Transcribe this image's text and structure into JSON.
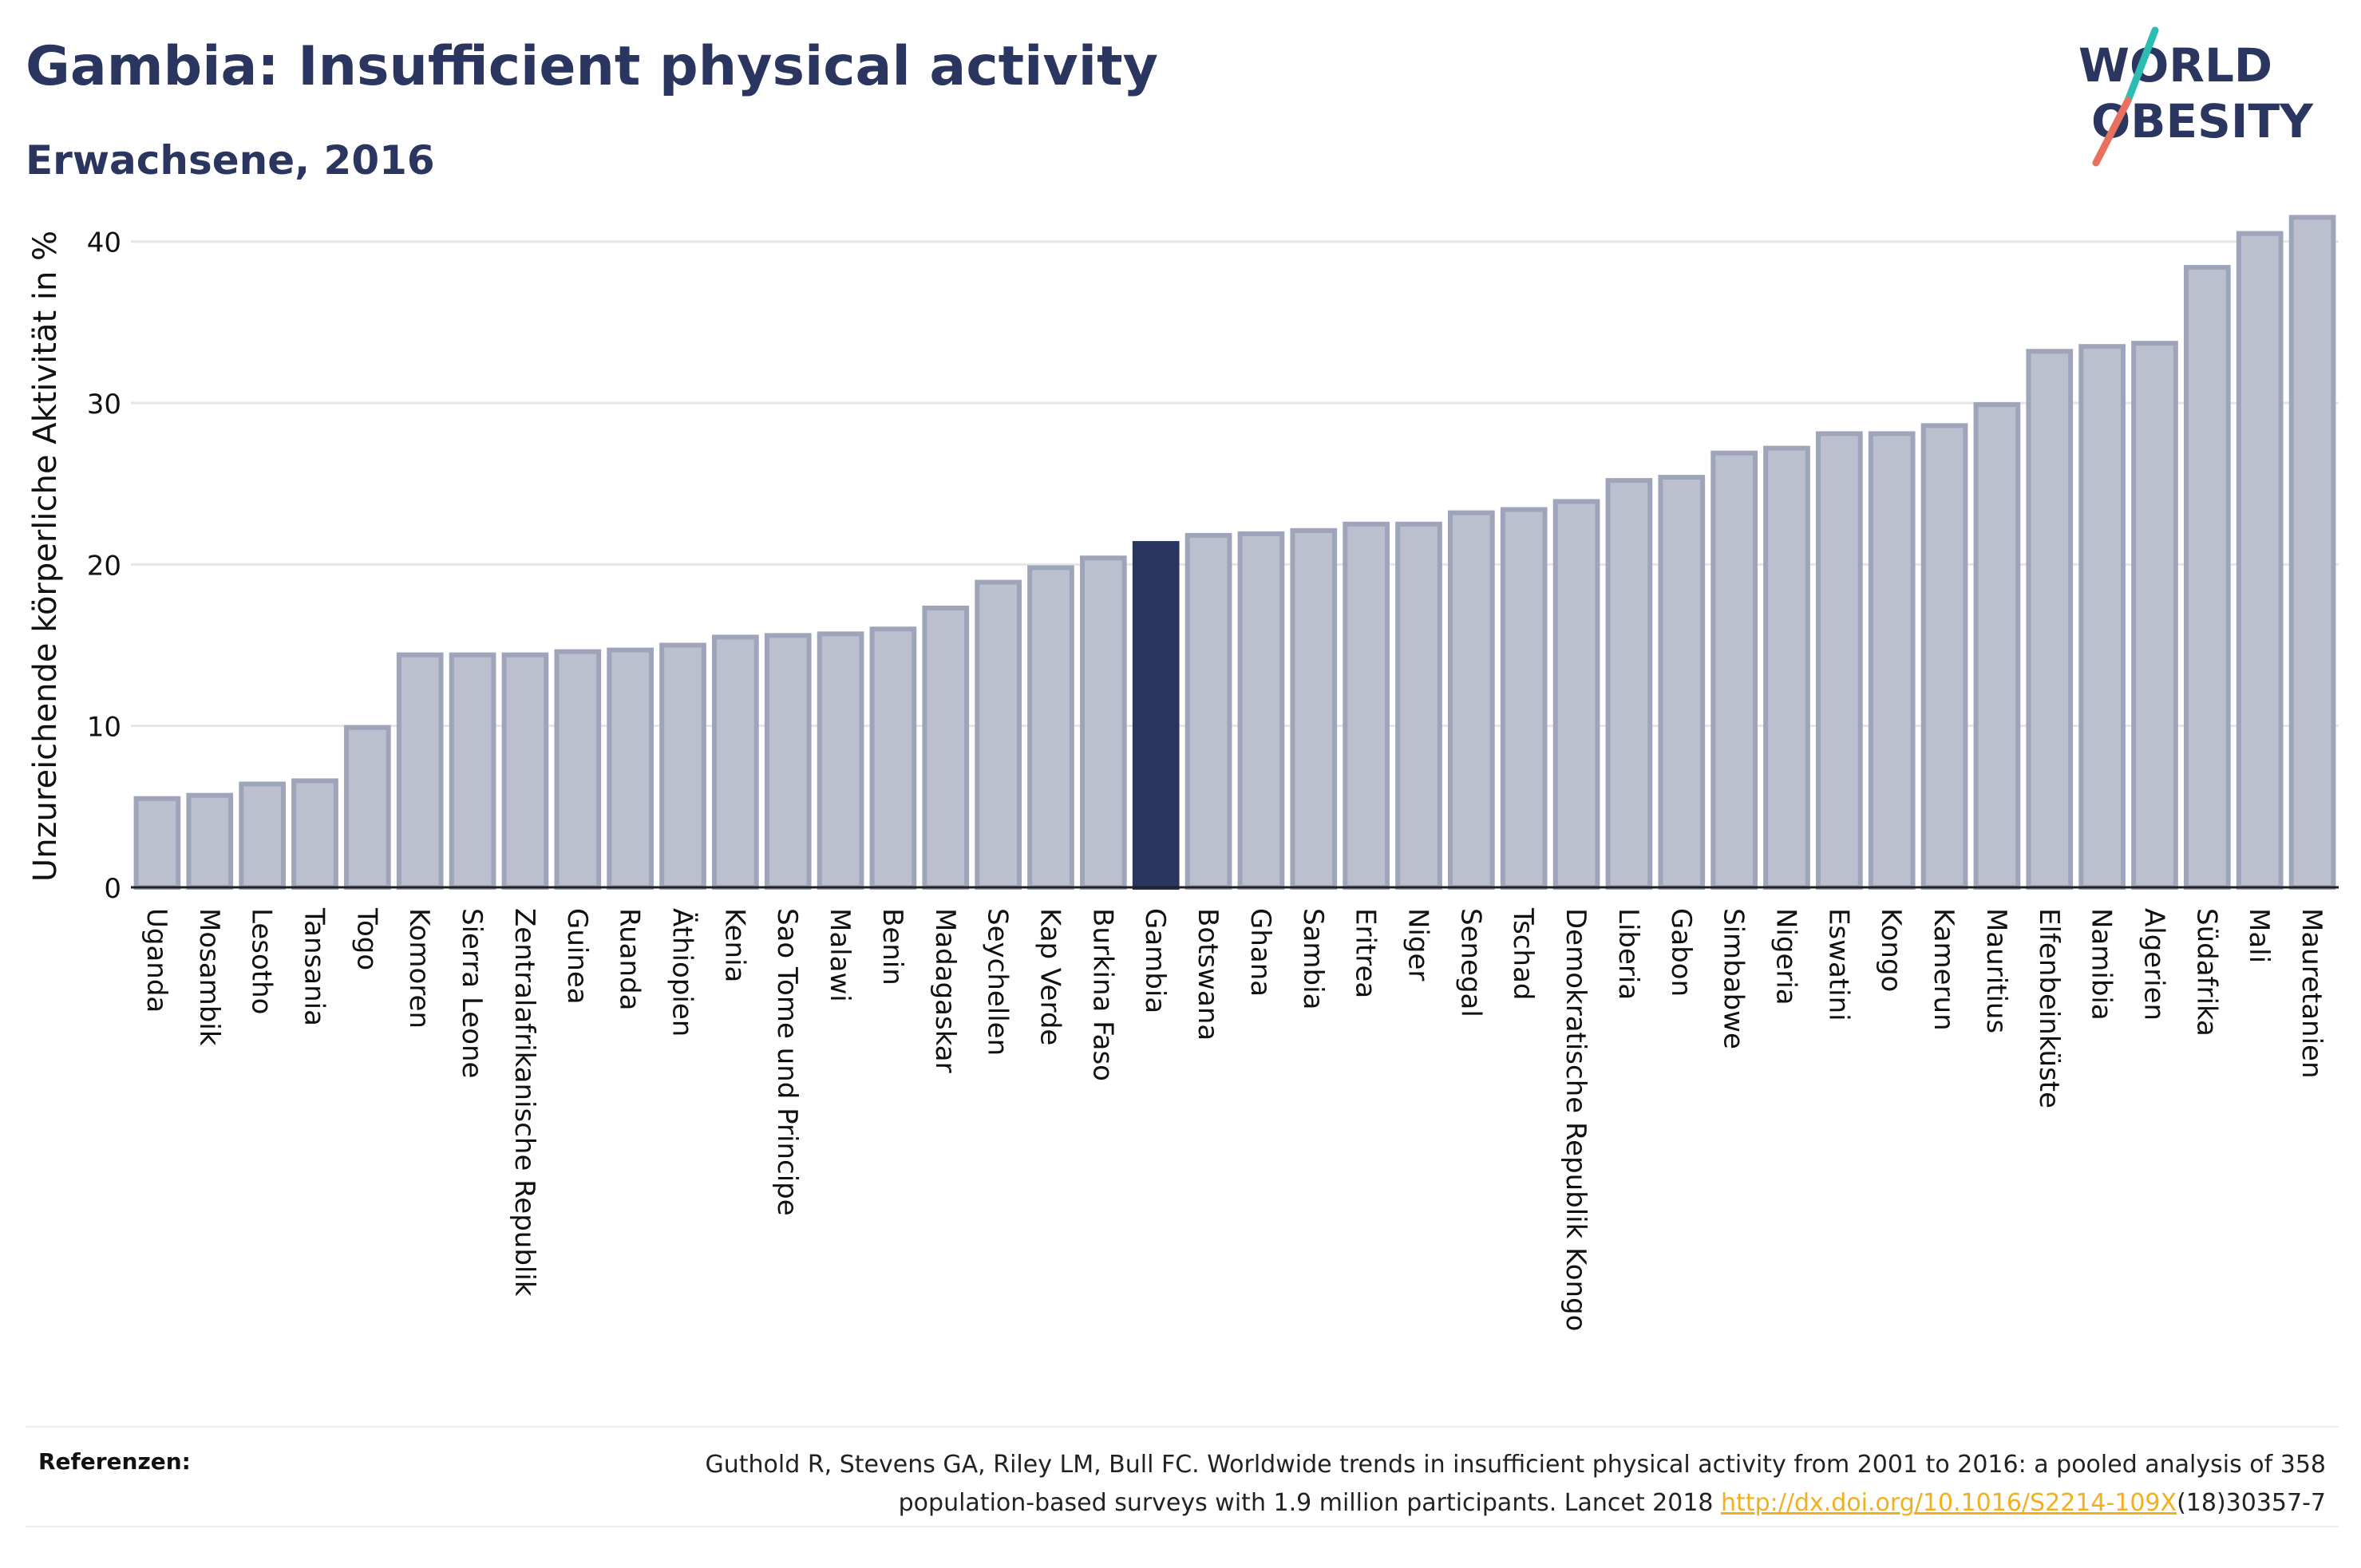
{
  "header": {
    "title": "Gambia: Insufficient physical activity",
    "subtitle": "Erwachsene, 2016"
  },
  "logo": {
    "line1": "WORLD",
    "line2": "OBESITY"
  },
  "colors": {
    "bar_fill": "#bcc0ce",
    "bar_stroke": "#9ea4ba",
    "highlight": "#2a3560",
    "title": "#2a3560",
    "grid": "#e6e6e6",
    "logo_teal": "#2bbdb1",
    "logo_coral": "#e8705e",
    "link": "#f2b01e"
  },
  "chart_data": {
    "type": "bar",
    "ylabel": "Unzureichende körperliche Aktivität in %",
    "ylim": [
      0,
      43
    ],
    "yticks": [
      0,
      10,
      20,
      30,
      40
    ],
    "grid": true,
    "highlight": "Gambia",
    "categories": [
      "Uganda",
      "Mosambik",
      "Lesotho",
      "Tansania",
      "Togo",
      "Komoren",
      "Sierra Leone",
      "Zentralafrikanische Republik",
      "Guinea",
      "Ruanda",
      "Äthiopien",
      "Kenia",
      "Sao Tome und Principe",
      "Malawi",
      "Benin",
      "Madagaskar",
      "Seychellen",
      "Kap Verde",
      "Burkina Faso",
      "Gambia",
      "Botswana",
      "Ghana",
      "Sambia",
      "Eritrea",
      "Niger",
      "Senegal",
      "Tschad",
      "Demokratische Republik Kongo",
      "Liberia",
      "Gabon",
      "Simbabwe",
      "Nigeria",
      "Eswatini",
      "Kongo",
      "Kamerun",
      "Mauritius",
      "Elfenbeinküste",
      "Namibia",
      "Algerien",
      "Südafrika",
      "Mali",
      "Mauretanien"
    ],
    "values": [
      5.5,
      5.7,
      6.4,
      6.6,
      9.9,
      14.4,
      14.4,
      14.4,
      14.6,
      14.7,
      15.0,
      15.5,
      15.6,
      15.7,
      16.0,
      17.3,
      18.9,
      19.8,
      20.4,
      21.3,
      21.8,
      21.9,
      22.1,
      22.5,
      22.5,
      23.2,
      23.4,
      23.9,
      25.2,
      25.4,
      26.9,
      27.2,
      28.1,
      28.1,
      28.6,
      29.9,
      33.2,
      33.5,
      33.7,
      38.4,
      40.5,
      41.5
    ]
  },
  "references": {
    "label": "Referenzen:",
    "line1": "Guthold R, Stevens GA, Riley LM, Bull FC. Worldwide trends in insufficient physical activity from 2001 to 2016: a pooled analysis of 358",
    "line2_prefix": "population-based surveys with 1.9 million participants. Lancet 2018 ",
    "link": "http://dx.doi.org/10.1016/S2214-109X",
    "line2_suffix": "(18)30357-7"
  }
}
